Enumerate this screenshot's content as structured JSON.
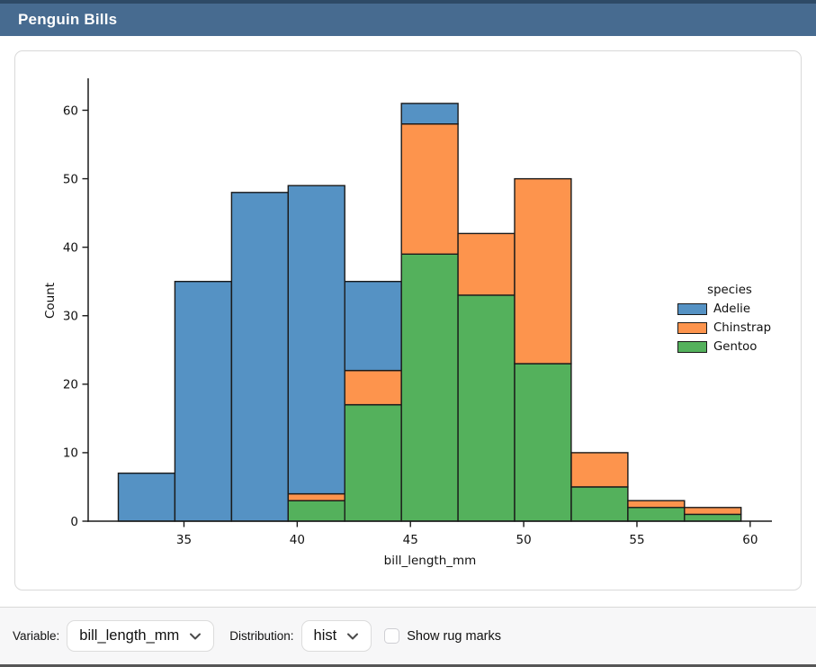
{
  "header": {
    "title": "Penguin Bills"
  },
  "chart_data": {
    "type": "bar",
    "subtype": "stacked-histogram",
    "xlabel": "bill_length_mm",
    "ylabel": "Count",
    "bin_edges": [
      32.1,
      34.6,
      37.1,
      39.6,
      42.1,
      44.6,
      47.1,
      49.6,
      52.1,
      54.6,
      57.1,
      59.6
    ],
    "series": [
      {
        "name": "Adelie",
        "color": "#5592c4",
        "values": [
          7,
          35,
          48,
          45,
          13,
          3,
          0,
          0,
          0,
          0,
          0
        ]
      },
      {
        "name": "Chinstrap",
        "color": "#fd944d",
        "values": [
          0,
          0,
          0,
          1,
          5,
          19,
          9,
          27,
          5,
          1,
          1
        ]
      },
      {
        "name": "Gentoo",
        "color": "#54b15c",
        "values": [
          0,
          0,
          0,
          3,
          17,
          39,
          33,
          23,
          5,
          2,
          1
        ]
      }
    ],
    "bin_totals": [
      7,
      35,
      48,
      49,
      35,
      61,
      42,
      50,
      10,
      3,
      2
    ],
    "stack_bottom_to_top": [
      "Gentoo",
      "Chinstrap",
      "Adelie"
    ],
    "x_ticks": [
      35,
      40,
      45,
      50,
      55,
      60
    ],
    "y_ticks": [
      0,
      10,
      20,
      30,
      40,
      50,
      60
    ],
    "xlim": [
      30.77,
      60.96
    ],
    "ylim": [
      0,
      64.4
    ],
    "grid": false,
    "legend": {
      "title": "species",
      "position": "right"
    },
    "edge_color": "#1a1a1a",
    "text_color": "#111111"
  },
  "footer": {
    "variable_label": "Variable:",
    "variable_value": "bill_length_mm",
    "distribution_label": "Distribution:",
    "distribution_value": "hist",
    "rug_label": "Show rug marks",
    "rug_checked": false
  },
  "colors": {
    "header_bg": "#476b90",
    "header_top_stripe": "#2e4a66",
    "footer_bg": "#f7f7f8",
    "card_border": "#d9d9d9"
  }
}
